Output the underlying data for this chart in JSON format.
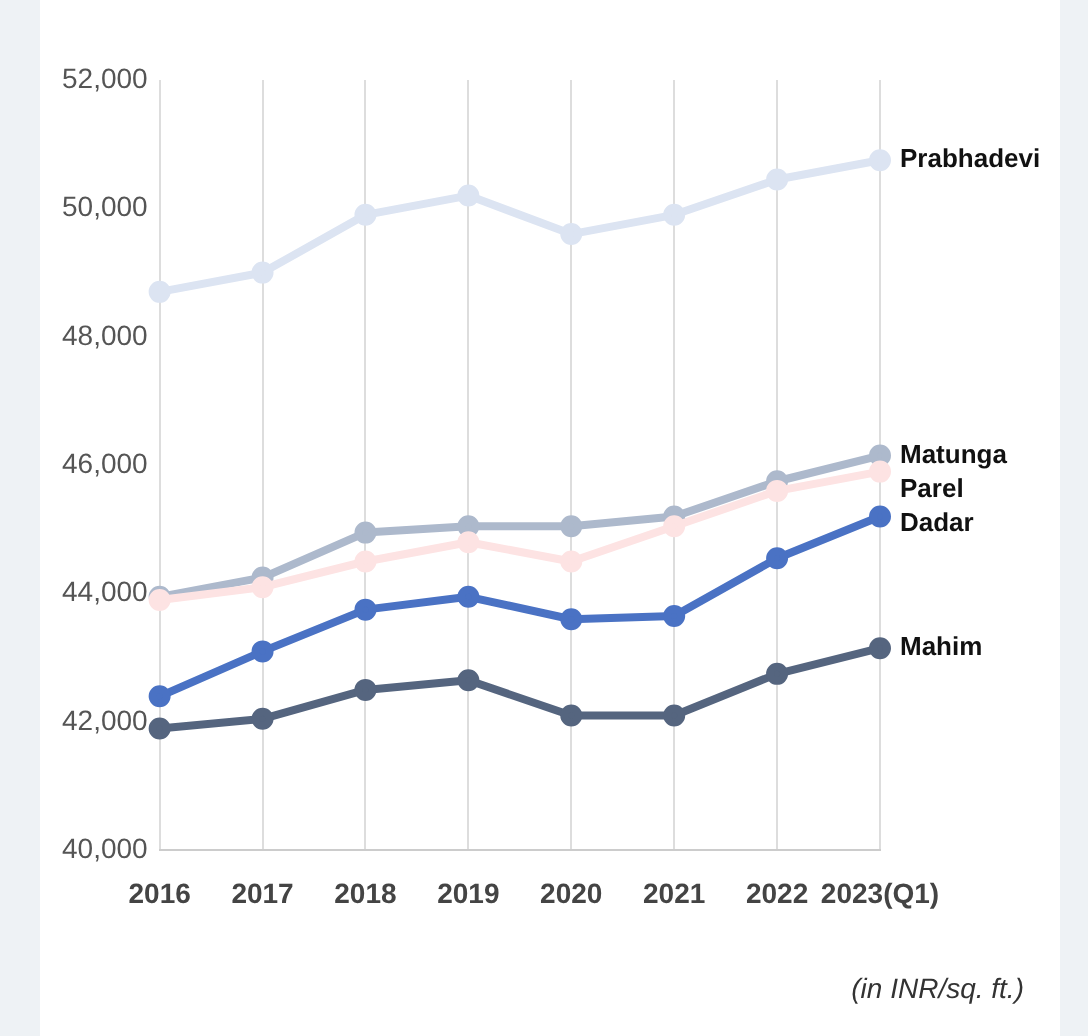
{
  "chart_data": {
    "type": "line",
    "categories": [
      "2016",
      "2017",
      "2018",
      "2019",
      "2020",
      "2021",
      "2022",
      "2023(Q1)"
    ],
    "series": [
      {
        "name": "Prabhadevi",
        "color": "#dce4f2",
        "values": [
          48700,
          49000,
          49900,
          50200,
          49600,
          49900,
          50450,
          50750
        ]
      },
      {
        "name": "Matunga",
        "color": "#adb9cc",
        "values": [
          43950,
          44250,
          44950,
          45050,
          45050,
          45200,
          45750,
          46150
        ]
      },
      {
        "name": "Parel",
        "color": "#fde3e3",
        "values": [
          43900,
          44100,
          44500,
          44800,
          44500,
          45050,
          45600,
          45900
        ]
      },
      {
        "name": "Dadar",
        "color": "#4a72c4",
        "values": [
          42400,
          43100,
          43750,
          43950,
          43600,
          43650,
          44550,
          45200
        ]
      },
      {
        "name": "Mahim",
        "color": "#55657f",
        "values": [
          41900,
          42050,
          42500,
          42650,
          42100,
          42100,
          42750,
          43150
        ]
      }
    ],
    "ylim": [
      40000,
      52000
    ],
    "yticks": [
      {
        "value": 40000,
        "label": "40,000"
      },
      {
        "value": 42000,
        "label": "42,000"
      },
      {
        "value": 44000,
        "label": "44,000"
      },
      {
        "value": 46000,
        "label": "46,000"
      },
      {
        "value": 48000,
        "label": "48,000"
      },
      {
        "value": 50000,
        "label": "50,000"
      },
      {
        "value": 52000,
        "label": "52,000"
      }
    ],
    "grid": "x",
    "legend": false,
    "marker": "circle",
    "line_style": "solid",
    "annotations": [
      "(in INR/sq. ft.)"
    ]
  }
}
